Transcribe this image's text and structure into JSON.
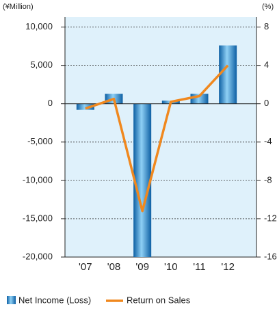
{
  "chart_data": {
    "type": "bar-line",
    "y_label": "(¥Million)",
    "y2_label": "(%)",
    "categories": [
      "'07",
      "'08",
      "'09",
      "'10",
      "'11",
      "'12"
    ],
    "series": [
      {
        "name": "Net Income (Loss)",
        "type": "bar",
        "color": "#1a7fc4",
        "values": [
          -800,
          1300,
          -20000,
          400,
          1300,
          7600
        ]
      },
      {
        "name": "Return on Sales",
        "type": "line",
        "axis": "y2",
        "color": "#f0881e",
        "values": [
          -0.5,
          0.5,
          -11.2,
          0.2,
          0.8,
          4.0
        ]
      }
    ],
    "ylim": [
      -20000,
      11300
    ],
    "yticks": [
      {
        "value": 10000,
        "label": "10,000"
      },
      {
        "value": 5000,
        "label": "5,000"
      },
      0,
      {
        "value": -5000,
        "label": "-5,000"
      },
      {
        "value": -10000,
        "label": "-10,000"
      },
      {
        "value": -15000,
        "label": "-15,000"
      },
      {
        "value": -20000,
        "label": "-20,000"
      }
    ],
    "y2lim": [
      -16,
      9.04
    ],
    "y2ticks": [
      8,
      4,
      0,
      -4,
      -8,
      -12,
      -16
    ],
    "grid": true
  }
}
